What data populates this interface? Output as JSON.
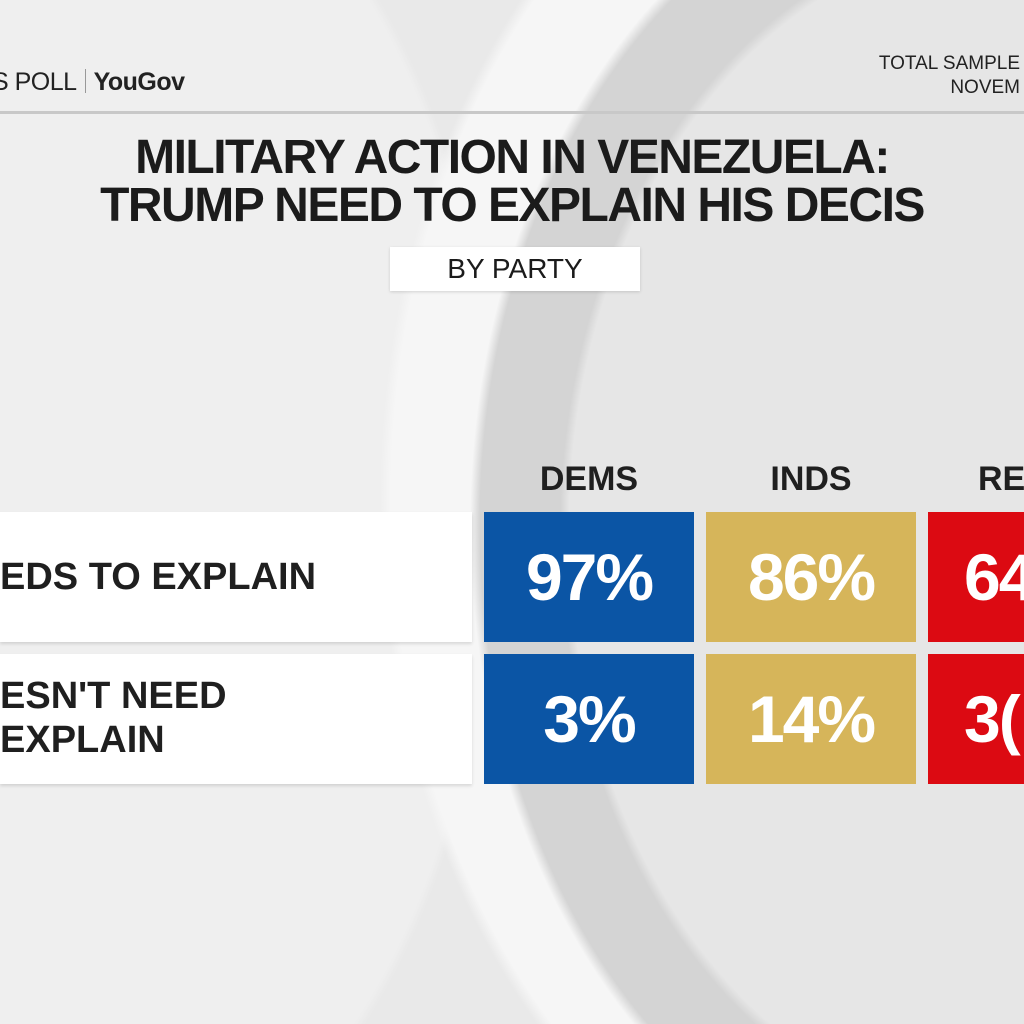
{
  "header": {
    "poll_label": "S POLL",
    "partner_logo": "YouGov",
    "sample_line1": "TOTAL SAMPLE",
    "sample_line2": "NOVEM"
  },
  "title_line1": "MILITARY ACTION IN VENEZUELA:",
  "title_line2": "TRUMP NEED TO EXPLAIN HIS DECIS",
  "subtitle": "BY PARTY",
  "colors": {
    "dems": "#0b55a5",
    "inds": "#d6b55a",
    "reps": "#dc0a12"
  },
  "chart_data": {
    "type": "table",
    "columns": [
      "DEMS",
      "INDS",
      "RE"
    ],
    "rows": [
      {
        "label_lines": [
          "EDS TO EXPLAIN"
        ],
        "values": [
          "97%",
          "86%",
          "64"
        ]
      },
      {
        "label_lines": [
          "ESN'T NEED",
          "EXPLAIN"
        ],
        "values": [
          "3%",
          "14%",
          "3("
        ]
      }
    ]
  }
}
